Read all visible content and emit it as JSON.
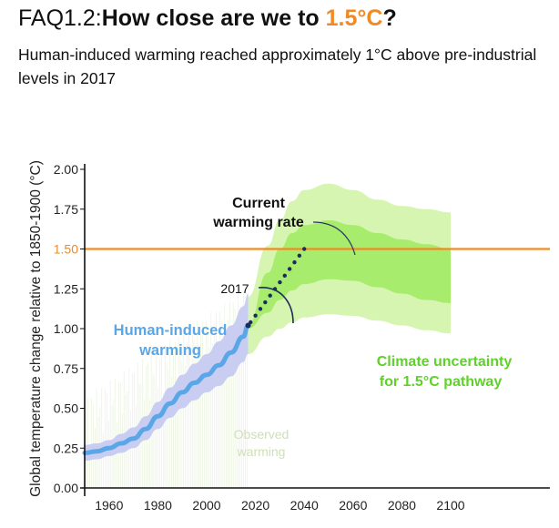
{
  "header": {
    "title_prefix": "FAQ1.2:",
    "title_main": "How close are we to ",
    "title_highlight": "1.5°C",
    "title_suffix": "?",
    "subtitle": "Human-induced warming reached approximately 1°C above pre-industrial levels in 2017"
  },
  "chart_data": {
    "type": "line",
    "ylabel": "Global temperature change relative to 1850-1900 (°C)",
    "xlabel": "",
    "xlim": [
      1950,
      2103
    ],
    "ylim": [
      0,
      2.0
    ],
    "xticks": [
      "1960",
      "1980",
      "2000",
      "2020",
      "2040",
      "2060",
      "2080",
      "2100"
    ],
    "yticks": [
      "0.00",
      "0.25",
      "0.50",
      "0.75",
      "1.00",
      "1.25",
      "1.50",
      "1.75",
      "2.00"
    ],
    "grid": false,
    "colors": {
      "human": "#5aa7e8",
      "human_band": "#c9cdf2",
      "outer_band": "#d6f5b0",
      "inner_band": "#a8ec6e",
      "threshold": "#f08a24",
      "observed": "#cfe3b5",
      "label_green": "#5fd12a"
    },
    "threshold": {
      "value": 1.5,
      "label": "1.50"
    },
    "human_induced": {
      "x": [
        1950,
        1955,
        1960,
        1965,
        1970,
        1975,
        1980,
        1985,
        1990,
        1995,
        2000,
        2005,
        2010,
        2015,
        2017
      ],
      "y": [
        0.22,
        0.23,
        0.25,
        0.28,
        0.31,
        0.37,
        0.45,
        0.53,
        0.6,
        0.66,
        0.71,
        0.77,
        0.85,
        0.95,
        1.02
      ],
      "lower": [
        0.17,
        0.18,
        0.2,
        0.22,
        0.25,
        0.3,
        0.37,
        0.44,
        0.5,
        0.55,
        0.6,
        0.64,
        0.7,
        0.79,
        0.84
      ],
      "upper": [
        0.27,
        0.28,
        0.3,
        0.34,
        0.38,
        0.45,
        0.54,
        0.63,
        0.71,
        0.78,
        0.84,
        0.92,
        1.02,
        1.14,
        1.22
      ]
    },
    "pathway_outer": {
      "x": [
        2017,
        2025,
        2030,
        2035,
        2040,
        2050,
        2060,
        2070,
        2080,
        2090,
        2100
      ],
      "lower": [
        0.84,
        0.95,
        1.0,
        1.04,
        1.07,
        1.09,
        1.08,
        1.05,
        1.02,
        0.99,
        0.97
      ],
      "upper": [
        1.2,
        1.52,
        1.68,
        1.8,
        1.87,
        1.91,
        1.87,
        1.81,
        1.77,
        1.75,
        1.73
      ]
    },
    "pathway_inner": {
      "x": [
        2017,
        2025,
        2030,
        2035,
        2040,
        2050,
        2060,
        2070,
        2080,
        2090,
        2100
      ],
      "lower": [
        1.0,
        1.1,
        1.18,
        1.24,
        1.28,
        1.31,
        1.3,
        1.26,
        1.22,
        1.18,
        1.16
      ],
      "upper": [
        1.02,
        1.35,
        1.5,
        1.6,
        1.65,
        1.68,
        1.65,
        1.6,
        1.56,
        1.53,
        1.5
      ]
    },
    "current_rate": {
      "x": [
        2018,
        2040
      ],
      "y": [
        1.04,
        1.5
      ],
      "points": 12
    },
    "annotations": {
      "current_rate": "Current warming rate",
      "current_rate_line1": "Current",
      "current_rate_line2": "warming rate",
      "year_2017": "2017",
      "human_line1": "Human-induced",
      "human_line2": "warming",
      "observed_line1": "Observed",
      "observed_line2": "warming",
      "uncertainty_line1": "Climate uncertainty",
      "uncertainty_line2": "for 1.5°C pathway"
    }
  }
}
